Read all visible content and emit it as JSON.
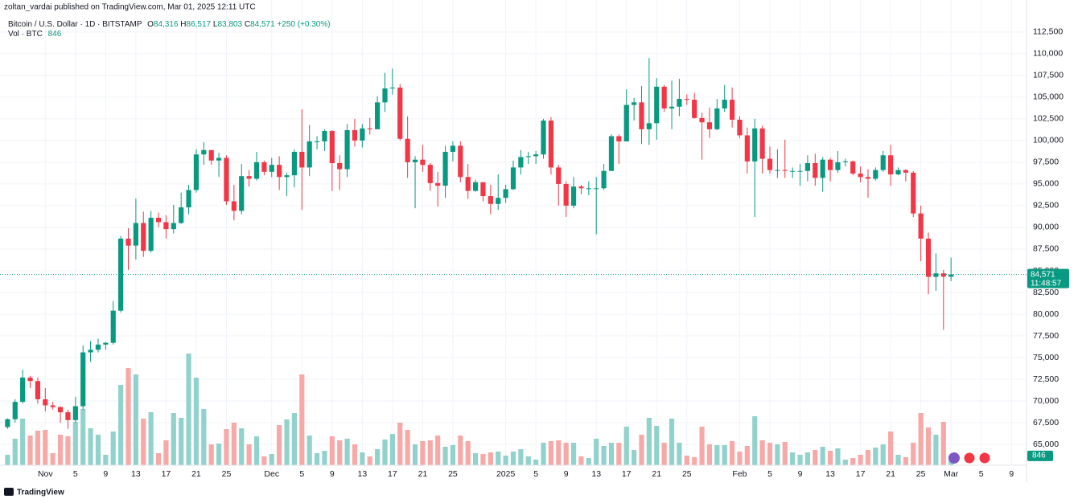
{
  "chart_data": {
    "type": "candlestick",
    "publisher_note": "zoltan_vardai published on TradingView.com, Mar 01, 2025 12:11 UTC",
    "title": "Bitcoin / U.S. Dollar · 1D · BITSTAMP",
    "ohlc_letters": [
      "O",
      "H",
      "L",
      "C"
    ],
    "ohlc_value_labels": [
      "84,316",
      "86,517",
      "83,803",
      "84,571"
    ],
    "change_label": "+250 (+0.30%)",
    "volume_title": "Vol · BTC",
    "last_price_label": "84,571",
    "countdown": "11:48:57",
    "brand": "TradingView",
    "up_color": "#089981",
    "down_color": "#f23645",
    "volume_up_color": "#92d2cc",
    "volume_down_color": "#f7a9a7",
    "grid": true,
    "x": [
      "2024-10-27",
      "2024-10-28",
      "2024-10-29",
      "2024-10-30",
      "2024-10-31",
      "2024-11-01",
      "2024-11-02",
      "2024-11-03",
      "2024-11-04",
      "2024-11-05",
      "2024-11-06",
      "2024-11-07",
      "2024-11-08",
      "2024-11-09",
      "2024-11-10",
      "2024-11-11",
      "2024-11-12",
      "2024-11-13",
      "2024-11-14",
      "2024-11-15",
      "2024-11-16",
      "2024-11-17",
      "2024-11-18",
      "2024-11-19",
      "2024-11-20",
      "2024-11-21",
      "2024-11-22",
      "2024-11-23",
      "2024-11-24",
      "2024-11-25",
      "2024-11-26",
      "2024-11-27",
      "2024-11-28",
      "2024-11-29",
      "2024-11-30",
      "2024-12-01",
      "2024-12-02",
      "2024-12-03",
      "2024-12-04",
      "2024-12-05",
      "2024-12-06",
      "2024-12-07",
      "2024-12-08",
      "2024-12-09",
      "2024-12-10",
      "2024-12-11",
      "2024-12-12",
      "2024-12-13",
      "2024-12-14",
      "2024-12-15",
      "2024-12-16",
      "2024-12-17",
      "2024-12-18",
      "2024-12-19",
      "2024-12-20",
      "2024-12-21",
      "2024-12-22",
      "2024-12-23",
      "2024-12-24",
      "2024-12-25",
      "2024-12-26",
      "2024-12-27",
      "2024-12-28",
      "2024-12-29",
      "2024-12-30",
      "2024-12-31",
      "2025-01-01",
      "2025-01-02",
      "2025-01-03",
      "2025-01-04",
      "2025-01-05",
      "2025-01-06",
      "2025-01-07",
      "2025-01-08",
      "2025-01-09",
      "2025-01-10",
      "2025-01-11",
      "2025-01-12",
      "2025-01-13",
      "2025-01-14",
      "2025-01-15",
      "2025-01-16",
      "2025-01-17",
      "2025-01-18",
      "2025-01-19",
      "2025-01-20",
      "2025-01-21",
      "2025-01-22",
      "2025-01-23",
      "2025-01-24",
      "2025-01-25",
      "2025-01-26",
      "2025-01-27",
      "2025-01-28",
      "2025-01-29",
      "2025-01-30",
      "2025-01-31",
      "2025-02-01",
      "2025-02-02",
      "2025-02-03",
      "2025-02-04",
      "2025-02-05",
      "2025-02-06",
      "2025-02-07",
      "2025-02-08",
      "2025-02-09",
      "2025-02-10",
      "2025-02-11",
      "2025-02-12",
      "2025-02-13",
      "2025-02-14",
      "2025-02-15",
      "2025-02-16",
      "2025-02-17",
      "2025-02-18",
      "2025-02-19",
      "2025-02-20",
      "2025-02-21",
      "2025-02-22",
      "2025-02-23",
      "2025-02-24",
      "2025-02-25",
      "2025-02-26",
      "2025-02-27",
      "2025-02-28",
      "2025-03-01"
    ],
    "open": [
      67000,
      67900,
      69900,
      72700,
      72300,
      70200,
      69500,
      69300,
      68700,
      67800,
      69400,
      75600,
      75900,
      76500,
      76700,
      80400,
      88700,
      87900,
      90500,
      87300,
      91100,
      90600,
      89800,
      90500,
      92300,
      94300,
      98400,
      98900,
      97700,
      98000,
      93000,
      91900,
      95900,
      95600,
      97500,
      96400,
      97200,
      95800,
      96000,
      98700,
      96900,
      99900,
      99900,
      101100,
      97400,
      96700,
      101200,
      100000,
      101400,
      101300,
      104400,
      106000,
      106100,
      100200,
      97500,
      97800,
      97200,
      95100,
      94800,
      98700,
      99400,
      95800,
      94200,
      95200,
      93600,
      92700,
      93400,
      94400,
      96900,
      98100,
      98200,
      98400,
      102300,
      96900,
      95000,
      92500,
      94700,
      94500,
      94500,
      94500,
      96500,
      100500,
      99900,
      104100,
      104400,
      101300,
      102000,
      106200,
      103700,
      103900,
      104800,
      104700,
      102600,
      102100,
      101300,
      103700,
      104700,
      102400,
      100600,
      97600,
      101400,
      97900,
      96600,
      96600,
      96500,
      96500,
      96500,
      97400,
      95700,
      97800,
      96600,
      97500,
      97600,
      96200,
      95800,
      95600,
      96600,
      98300,
      96100,
      96600,
      96300,
      91600,
      88700,
      84300,
      84700,
      84316
    ],
    "high": [
      68000,
      70200,
      73600,
      72900,
      72700,
      71500,
      69900,
      69400,
      69000,
      70500,
      76400,
      76900,
      77200,
      76800,
      81500,
      89000,
      89900,
      93300,
      91800,
      91900,
      91700,
      91400,
      92600,
      94000,
      94900,
      99000,
      99800,
      98900,
      98600,
      98300,
      94900,
      97300,
      96600,
      98700,
      97700,
      98000,
      98200,
      96300,
      99000,
      103600,
      101800,
      100500,
      101300,
      101200,
      98300,
      101900,
      102500,
      101900,
      102600,
      105100,
      107800,
      108300,
      106500,
      102800,
      98200,
      99500,
      97400,
      96400,
      99400,
      99900,
      99900,
      97300,
      95500,
      95200,
      94900,
      96100,
      94900,
      97700,
      98900,
      98700,
      98800,
      102500,
      102700,
      97200,
      95300,
      95800,
      94900,
      95300,
      95800,
      97300,
      100700,
      100700,
      105900,
      104900,
      106300,
      109500,
      107200,
      106400,
      106900,
      107100,
      105300,
      105500,
      103200,
      103800,
      104800,
      106400,
      106100,
      102800,
      101500,
      102500,
      101700,
      99300,
      99000,
      100100,
      96900,
      97300,
      98300,
      98500,
      98100,
      98000,
      98800,
      97900,
      97700,
      97000,
      96700,
      96900,
      98800,
      99500,
      96900,
      96700,
      96500,
      92500,
      89400,
      87000,
      85100,
      86517
    ],
    "low": [
      66800,
      67500,
      69700,
      71500,
      69700,
      68800,
      69000,
      67500,
      66800,
      67500,
      69000,
      74500,
      75600,
      75900,
      76500,
      80200,
      85100,
      86300,
      86600,
      87100,
      90000,
      88700,
      89300,
      90400,
      91500,
      94000,
      97200,
      97200,
      95800,
      92600,
      90800,
      91500,
      94700,
      95400,
      96000,
      95800,
      94300,
      93600,
      94600,
      92000,
      95900,
      99000,
      98800,
      94200,
      94300,
      95800,
      99300,
      99200,
      100700,
      101300,
      103300,
      105300,
      100000,
      95700,
      92200,
      96400,
      94200,
      92400,
      93400,
      97600,
      95200,
      93300,
      94100,
      93000,
      91500,
      92000,
      92800,
      94300,
      96100,
      97300,
      97300,
      97900,
      96100,
      92500,
      91200,
      92200,
      93800,
      93700,
      89200,
      94300,
      96500,
      97300,
      99900,
      102300,
      99600,
      99500,
      100100,
      103300,
      101300,
      102800,
      104100,
      102500,
      97800,
      100300,
      101200,
      103300,
      101500,
      100300,
      96200,
      91200,
      96200,
      96200,
      95700,
      95700,
      95700,
      94800,
      95300,
      94800,
      94100,
      95300,
      96300,
      97000,
      96000,
      95200,
      93400,
      95400,
      96400,
      94800,
      96000,
      95300,
      91200,
      86100,
      82300,
      82700,
      78200,
      83803
    ],
    "close": [
      67900,
      69900,
      72700,
      72300,
      70200,
      69500,
      69300,
      68700,
      67800,
      69400,
      75600,
      75900,
      76500,
      76700,
      80400,
      88700,
      87900,
      90500,
      87300,
      91100,
      90600,
      89800,
      90500,
      92300,
      94300,
      98400,
      98900,
      97700,
      98000,
      93000,
      91900,
      95900,
      95600,
      97500,
      96400,
      97200,
      95800,
      96000,
      98700,
      96900,
      99900,
      99900,
      101100,
      97400,
      96700,
      101200,
      100000,
      101400,
      101300,
      104400,
      106000,
      106100,
      100200,
      97500,
      97800,
      97200,
      95100,
      94800,
      98700,
      99400,
      95800,
      94200,
      95200,
      93600,
      92700,
      93400,
      94400,
      96900,
      98100,
      98200,
      98400,
      102300,
      96900,
      95000,
      92500,
      94700,
      94500,
      94500,
      94500,
      96500,
      100500,
      99900,
      104100,
      104400,
      101300,
      102000,
      106200,
      103700,
      103900,
      104800,
      104700,
      102600,
      102100,
      101300,
      103700,
      104700,
      102400,
      100600,
      97600,
      101400,
      97900,
      96600,
      96600,
      96500,
      96500,
      96500,
      97400,
      95700,
      97800,
      96600,
      97500,
      97600,
      96200,
      95800,
      95600,
      96600,
      98300,
      96100,
      96600,
      96300,
      91600,
      88700,
      84300,
      84700,
      84321,
      84571
    ],
    "volume": [
      910,
      2310,
      4060,
      2590,
      3010,
      3080,
      1050,
      2660,
      2520,
      3780,
      4900,
      3220,
      2660,
      910,
      2940,
      7000,
      8470,
      7910,
      4060,
      4620,
      1050,
      2170,
      4550,
      4130,
      9730,
      7630,
      4900,
      1820,
      1890,
      3150,
      3710,
      3220,
      1820,
      2520,
      770,
      980,
      3500,
      3990,
      4550,
      7910,
      2590,
      1050,
      1260,
      2520,
      2170,
      2310,
      1820,
      1120,
      770,
      1400,
      2240,
      2730,
      3710,
      3080,
      1820,
      2100,
      2170,
      2590,
      1610,
      1750,
      2590,
      2100,
      1050,
      980,
      1120,
      1190,
      840,
      1190,
      1400,
      770,
      490,
      1960,
      2100,
      2170,
      1960,
      1960,
      770,
      630,
      2310,
      1680,
      1960,
      1960,
      3360,
      1330,
      2660,
      4130,
      3430,
      1960,
      4060,
      1960,
      840,
      700,
      3360,
      1820,
      1750,
      1750,
      2100,
      1190,
      1680,
      4270,
      2170,
      1960,
      1820,
      2030,
      1120,
      910,
      1120,
      1330,
      1610,
      1260,
      1470,
      490,
      630,
      910,
      1330,
      1540,
      1820,
      2940,
      910,
      700,
      1960,
      4550,
      3290,
      2660,
      3780,
      846
    ],
    "xlim": [
      "2024-10-26",
      "2025-03-11"
    ],
    "ylim": [
      62600,
      114800
    ],
    "y2lim": [
      0,
      39480
    ],
    "yticks": [
      {
        "value": 65000,
        "label": "65,000"
      },
      {
        "value": 67500,
        "label": "67,500"
      },
      {
        "value": 70000,
        "label": "70,000"
      },
      {
        "value": 72500,
        "label": "72,500"
      },
      {
        "value": 75000,
        "label": "75,000"
      },
      {
        "value": 77500,
        "label": "77,500"
      },
      {
        "value": 80000,
        "label": "80,000"
      },
      {
        "value": 82500,
        "label": "82,500"
      },
      {
        "value": 85000,
        "label": "85,000"
      },
      {
        "value": 87500,
        "label": "87,500"
      },
      {
        "value": 90000,
        "label": "90,000"
      },
      {
        "value": 92500,
        "label": "92,500"
      },
      {
        "value": 95000,
        "label": "95,000"
      },
      {
        "value": 97500,
        "label": "97,500"
      },
      {
        "value": 100000,
        "label": "100,000"
      },
      {
        "value": 102500,
        "label": "102,500"
      },
      {
        "value": 105000,
        "label": "105,000"
      },
      {
        "value": 107500,
        "label": "107,500"
      },
      {
        "value": 110000,
        "label": "110,000"
      },
      {
        "value": 112500,
        "label": "112,500"
      }
    ],
    "xticks": [
      {
        "value": "2024-11-01",
        "label": "Nov"
      },
      {
        "value": "2024-11-05",
        "label": "5"
      },
      {
        "value": "2024-11-09",
        "label": "9"
      },
      {
        "value": "2024-11-13",
        "label": "13"
      },
      {
        "value": "2024-11-17",
        "label": "17"
      },
      {
        "value": "2024-11-21",
        "label": "21"
      },
      {
        "value": "2024-11-25",
        "label": "25"
      },
      {
        "value": "2024-12-01",
        "label": "Dec"
      },
      {
        "value": "2024-12-05",
        "label": "5"
      },
      {
        "value": "2024-12-09",
        "label": "9"
      },
      {
        "value": "2024-12-13",
        "label": "13"
      },
      {
        "value": "2024-12-17",
        "label": "17"
      },
      {
        "value": "2024-12-21",
        "label": "21"
      },
      {
        "value": "2024-12-25",
        "label": "25"
      },
      {
        "value": "2025-01-01",
        "label": "2025"
      },
      {
        "value": "2025-01-05",
        "label": "5"
      },
      {
        "value": "2025-01-09",
        "label": "9"
      },
      {
        "value": "2025-01-13",
        "label": "13"
      },
      {
        "value": "2025-01-17",
        "label": "17"
      },
      {
        "value": "2025-01-21",
        "label": "21"
      },
      {
        "value": "2025-01-25",
        "label": "25"
      },
      {
        "value": "2025-02-01",
        "label": "Feb"
      },
      {
        "value": "2025-02-05",
        "label": "5"
      },
      {
        "value": "2025-02-09",
        "label": "9"
      },
      {
        "value": "2025-02-13",
        "label": "13"
      },
      {
        "value": "2025-02-17",
        "label": "17"
      },
      {
        "value": "2025-02-21",
        "label": "21"
      },
      {
        "value": "2025-02-25",
        "label": "25"
      },
      {
        "value": "2025-03-01",
        "label": "Mar"
      },
      {
        "value": "2025-03-05",
        "label": "5"
      },
      {
        "value": "2025-03-09",
        "label": "9"
      }
    ]
  }
}
